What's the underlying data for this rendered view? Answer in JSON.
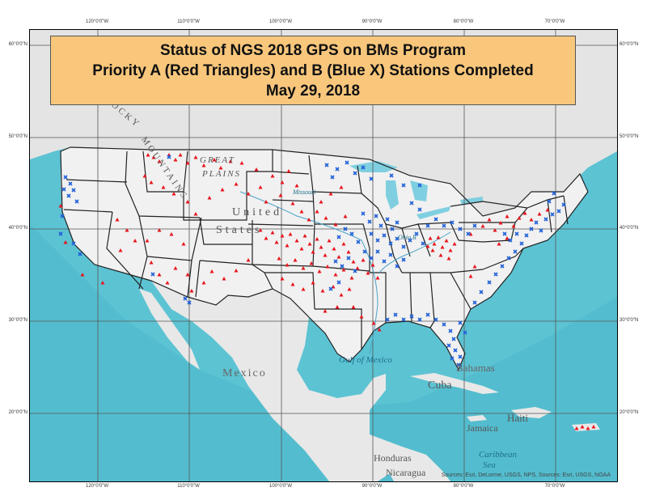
{
  "title": {
    "line1": "Status of NGS 2018 GPS on BMs Program",
    "line2": "Priority A (Red Triangles) and B (Blue X) Stations Completed",
    "line3": "May 29, 2018"
  },
  "graticule": {
    "longitudes": [
      "120°0'0\"W",
      "110°0'0\"W",
      "100°0'0\"W",
      "90°0'0\"W",
      "80°0'0\"W",
      "70°0'0\"W"
    ],
    "latitudes": [
      "60°0'0\"N",
      "50°0'0\"N",
      "40°0'0\"N",
      "30°0'0\"N",
      "20°0'0\"N"
    ]
  },
  "labels": {
    "great": "GREAT",
    "plains": "PLAINS",
    "united": "United",
    "states": "States",
    "rocky": "ROCKY",
    "mountains": "MOUNTAINS",
    "missouri": "Missouri",
    "ohio": "Ohio R",
    "gulf": "Gulf of Mexico",
    "mexico": "Mexico",
    "bahamas": "Bahamas",
    "cuba": "Cuba",
    "haiti": "Haiti",
    "jamaica": "Jamaica",
    "caribbean": "Caribbean",
    "sea": "Sea",
    "honduras": "Honduras",
    "nicaragua": "Nicaragua"
  },
  "attribution": "Sources: Esri, DeLorme, USGS, NPS, Sources: Esri, USGS, NOAA",
  "colors": {
    "priority_a": "#e8141c",
    "priority_b": "#2060d8",
    "ocean": "#5cc3d3",
    "land": "#eeeeee",
    "title_bg": "#f9c77c"
  },
  "map_data": {
    "type": "point_map",
    "priority_a_symbol": "triangle",
    "priority_b_symbol": "x"
  }
}
